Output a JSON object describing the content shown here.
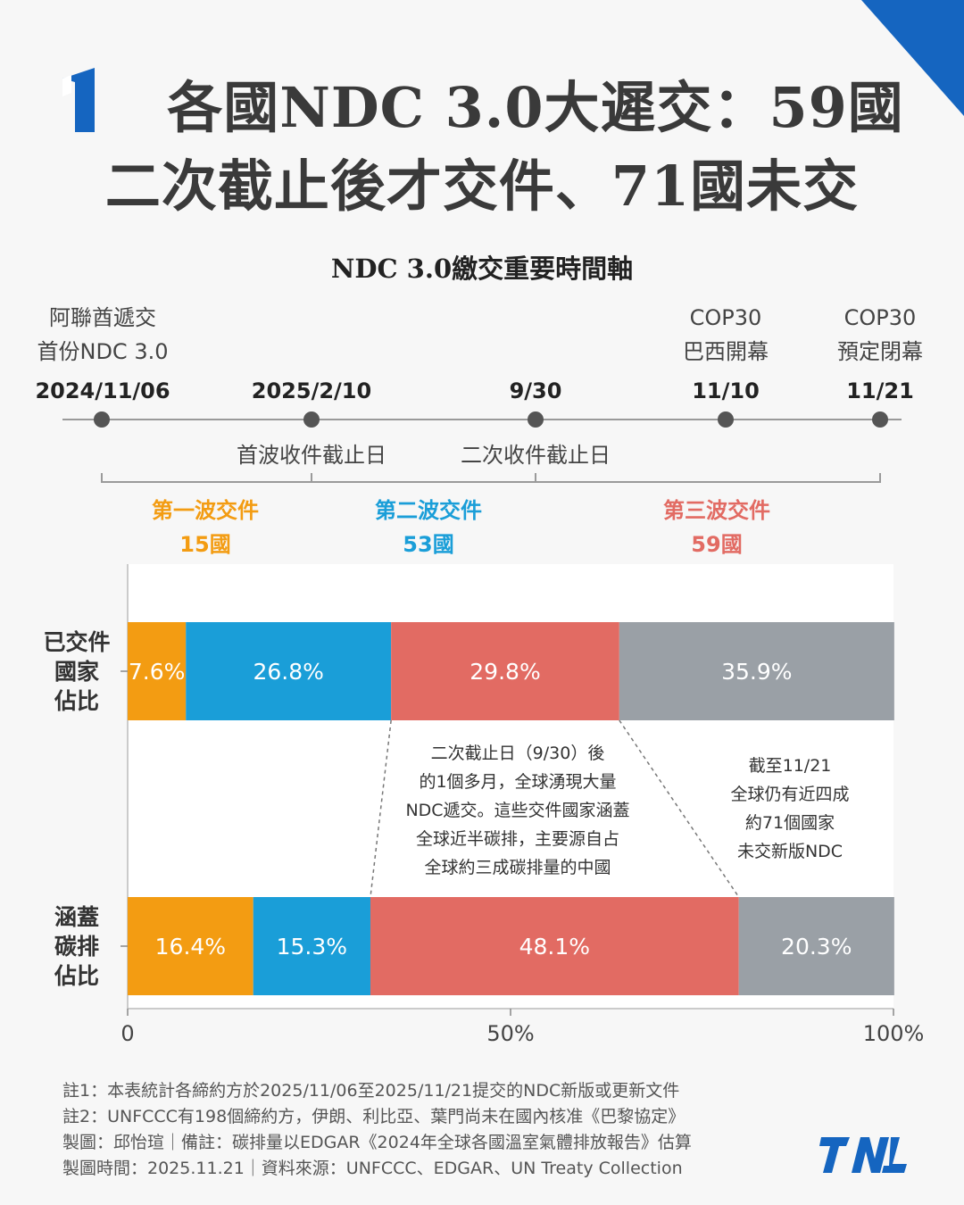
{
  "header": {
    "badge_icon": "number-one-badge-icon",
    "title_line1": "各國NDC 3.0大遲交：59國",
    "title_line2": "二次截止後才交件、71國未交",
    "subtitle": "NDC 3.0繳交重要時間軸"
  },
  "timeline": {
    "events": [
      {
        "date": "2024/11/06",
        "above": [
          "阿聯酋遞交",
          "首份NDC 3.0"
        ],
        "below": ""
      },
      {
        "date": "2025/2/10",
        "above": [],
        "below": "首波收件截止日"
      },
      {
        "date": "9/30",
        "above": [],
        "below": "二次收件截止日"
      },
      {
        "date": "11/10",
        "above": [
          "COP30",
          "巴西開幕"
        ],
        "below": ""
      },
      {
        "date": "11/21",
        "above": [
          "COP30",
          "預定閉幕"
        ],
        "below": ""
      }
    ],
    "waves": [
      {
        "name": "第一波交件",
        "count": "15國",
        "color": "#f39c12"
      },
      {
        "name": "第二波交件",
        "count": "53國",
        "color": "#1a9ed8"
      },
      {
        "name": "第三波交件",
        "count": "59國",
        "color": "#e26b63"
      }
    ]
  },
  "chart_data": {
    "type": "bar",
    "orientation": "horizontal",
    "stacked": true,
    "categories": [
      "已交件國家佔比",
      "涵蓋碳排佔比"
    ],
    "category_lines": [
      [
        "已交件",
        "國家",
        "佔比"
      ],
      [
        "涵蓋",
        "碳排",
        "佔比"
      ]
    ],
    "series": [
      {
        "name": "第一波交件",
        "color": "#f39c12",
        "values": [
          7.6,
          16.4
        ],
        "labels": [
          "7.6%",
          "16.4%"
        ]
      },
      {
        "name": "第二波交件",
        "color": "#1a9ed8",
        "values": [
          26.8,
          15.3
        ],
        "labels": [
          "26.8%",
          "15.3%"
        ]
      },
      {
        "name": "第三波交件",
        "color": "#e26b63",
        "values": [
          29.8,
          48.1
        ],
        "labels": [
          "29.8%",
          "48.1%"
        ]
      },
      {
        "color": "#9aa0a6",
        "values": [
          35.9,
          20.3
        ],
        "labels": [
          "35.9%",
          "20.3%"
        ]
      }
    ],
    "xlim": [
      0,
      100
    ],
    "xticks": [
      "0",
      "50%",
      "100%"
    ],
    "annotations": [
      [
        "二次截止日（9/30）後",
        "的1個多月，全球湧現大量",
        "NDC遞交。這些交件國家涵蓋",
        "全球近半碳排，主要源自占",
        "全球約三成碳排量的中國"
      ],
      [
        "截至11/21",
        "全球仍有近四成",
        "約71個國家",
        "未交新版NDC"
      ]
    ]
  },
  "footer": {
    "lines": [
      "註1：本表統計各締約方於2025/11/06至2025/11/21提交的NDC新版或更新文件",
      "註2：UNFCCC有198個締約方，伊朗、利比亞、葉門尚未在國內核准《巴黎協定》",
      "製圖：邱怡瑄｜備註：碳排量以EDGAR《2024年全球各國溫室氣體排放報告》估算",
      "製圖時間：2025.11.21｜資料來源：UNFCCC、EDGAR、UN Treaty Collection"
    ],
    "logo_text": "TNL",
    "logo_color": "#1565c0"
  }
}
